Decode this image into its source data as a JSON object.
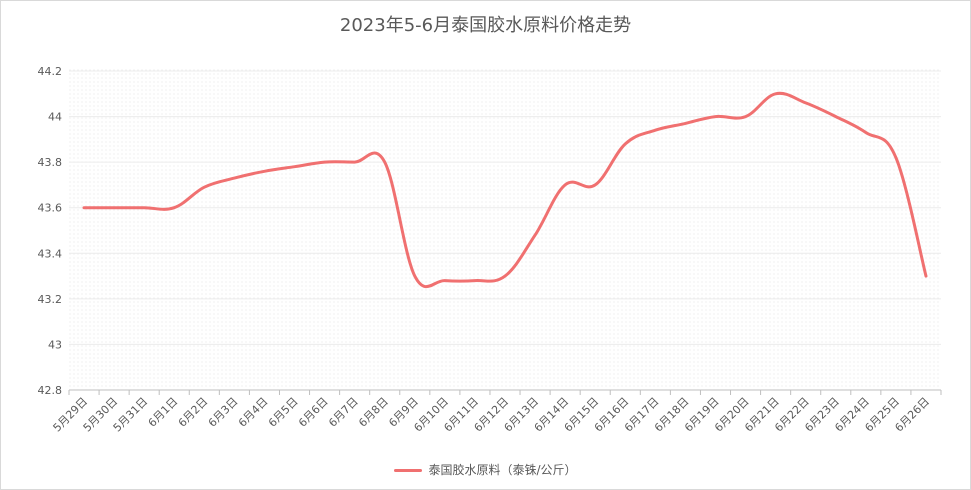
{
  "chart_data": {
    "type": "line",
    "title": "2023年5-6月泰国胶水原料价格走势",
    "xlabel": "",
    "ylabel": "",
    "ylim": [
      42.8,
      44.2
    ],
    "yticks": [
      "42.8",
      "43",
      "43.2",
      "43.4",
      "43.6",
      "43.8",
      "44",
      "44.2"
    ],
    "categories": [
      "5月29日",
      "5月30日",
      "5月31日",
      "6月1日",
      "6月2日",
      "6月3日",
      "6月4日",
      "6月5日",
      "6月6日",
      "6月7日",
      "6月8日",
      "6月9日",
      "6月10日",
      "6月11日",
      "6月12日",
      "6月13日",
      "6月14日",
      "6月15日",
      "6月16日",
      "6月17日",
      "6月18日",
      "6月19日",
      "6月20日",
      "6月21日",
      "6月22日",
      "6月23日",
      "6月24日",
      "6月25日",
      "6月26日"
    ],
    "series": [
      {
        "name": "泰国胶水原料（泰铢/公斤）",
        "color": "#f07070",
        "values": [
          43.6,
          43.6,
          43.6,
          43.6,
          43.69,
          43.73,
          43.76,
          43.78,
          43.8,
          43.8,
          43.8,
          43.3,
          43.28,
          43.28,
          43.3,
          43.48,
          43.7,
          43.7,
          43.88,
          43.94,
          43.97,
          44.0,
          44.0,
          44.1,
          44.06,
          44.0,
          43.93,
          43.82,
          43.3
        ]
      }
    ],
    "grid": true,
    "legend_position": "bottom"
  }
}
